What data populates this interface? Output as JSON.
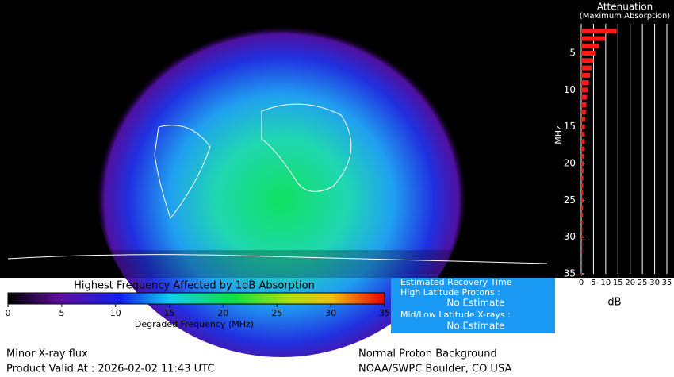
{
  "map": {
    "title": "Highest Frequency Affected by 1dB Absorption",
    "colorbar": {
      "label": "Degraded Frequency (MHz)",
      "lim": [
        0,
        35
      ],
      "ticks": [
        0,
        5,
        10,
        15,
        20,
        25,
        30,
        35
      ]
    }
  },
  "recovery": {
    "title": "Estimated Recovery Time",
    "high_label": "High Latitude Protons :",
    "high_value": "No Estimate",
    "mid_label": "Mid/Low Latitude X-rays :",
    "mid_value": "No Estimate"
  },
  "footer": {
    "xray": "Minor X-ray flux",
    "valid": "Product Valid At : 2026-02-02 11:43 UTC",
    "proton": "Normal Proton Background",
    "source": "NOAA/SWPC Boulder, CO USA"
  },
  "chart_data": {
    "type": "bar",
    "orientation": "horizontal",
    "title": "Attenuation",
    "subtitle": "(Maximum Absorption)",
    "y_label": "MHz",
    "x_label": "dB",
    "y": [
      2,
      3,
      4,
      5,
      6,
      7,
      8,
      9,
      10,
      11,
      12,
      13,
      14,
      15,
      16,
      17,
      18,
      19,
      20,
      21,
      22,
      23,
      24,
      25,
      26,
      27,
      28,
      29,
      30,
      31,
      32,
      33,
      34,
      35
    ],
    "values": [
      14.5,
      9.8,
      7.3,
      6,
      5,
      4.2,
      3.6,
      3.1,
      2.7,
      2.4,
      2.1,
      1.9,
      1.7,
      1.5,
      1.4,
      1.3,
      1.2,
      1.1,
      1.0,
      0.9,
      0.85,
      0.8,
      0.75,
      0.7,
      0.65,
      0.6,
      0.55,
      0.5,
      0.5,
      0.45,
      0.45,
      0.4,
      0.4,
      0.35
    ],
    "color": "#ff1a1a",
    "ylim": [
      1,
      35
    ],
    "yticks": [
      5,
      10,
      15,
      20,
      25,
      30,
      35
    ],
    "xlim": [
      0,
      35
    ],
    "xticks": [
      0,
      5,
      10,
      15,
      20,
      25,
      30,
      35
    ],
    "grid": true
  }
}
